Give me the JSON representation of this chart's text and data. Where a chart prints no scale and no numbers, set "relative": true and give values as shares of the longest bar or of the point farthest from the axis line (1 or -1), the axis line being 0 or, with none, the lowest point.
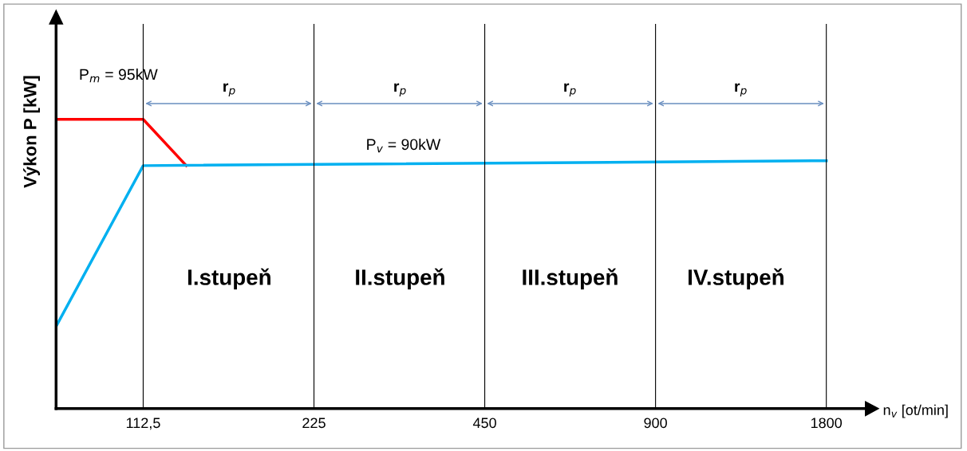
{
  "chart_data": {
    "type": "line",
    "relative": true,
    "log": "x",
    "ylabel": "Výkon P [kW]",
    "xlabel": "n$_{v}$ [ot/min]",
    "xlim": [
      79,
      2110
    ],
    "xticks": [
      {
        "value": 112.5,
        "label": "112,5"
      },
      225,
      450,
      900,
      1800
    ],
    "tick_labels": "x",
    "grid": false,
    "marker": "none",
    "line_style": "solid",
    "series": [
      {
        "color": "#ff0000",
        "x": [
          79,
          112.5,
          134
        ],
        "values": [
          1,
          1,
          0.84
        ]
      },
      {
        "color": "#00b0f0",
        "x": [
          79,
          112.5,
          1800
        ],
        "values": [
          0.284,
          0.84,
          0.857
        ]
      }
    ],
    "ref_lines": [
      {
        "axis": "x",
        "value": 112.5,
        "color": "#000000"
      },
      {
        "axis": "x",
        "value": 225,
        "color": "#000000"
      },
      {
        "axis": "x",
        "value": 450,
        "color": "#000000"
      },
      {
        "axis": "x",
        "value": 900,
        "color": "#000000"
      },
      {
        "axis": "x",
        "value": 1800,
        "color": "#000000"
      }
    ],
    "annotations": [
      "P$_{m}$ = 95kW",
      "P$_{v}$ = 90kW",
      "r$_{p}$",
      "r$_{p}$",
      "r$_{p}$",
      "r$_{p}$",
      "I.stupeň",
      "II.stupeň",
      "III.stupeň",
      "IV.stupeň"
    ]
  }
}
